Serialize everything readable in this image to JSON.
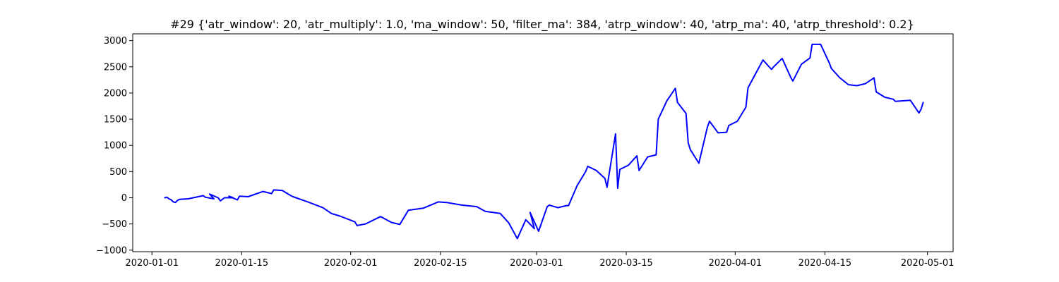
{
  "chart_data": {
    "type": "line",
    "title": "#29 {'atr_window': 20, 'atr_multiply': 1.0, 'ma_window': 50, 'filter_ma': 384, 'atrp_window': 40, 'atrp_ma': 40, 'atrp_threshold': 0.2}",
    "xlabel": "",
    "ylabel": "",
    "x_is_date": true,
    "xlim": [
      "2019-12-29",
      "2020-05-05"
    ],
    "ylim": [
      -1030,
      3130
    ],
    "x_ticks": [
      "2020-01-01",
      "2020-01-15",
      "2020-02-01",
      "2020-02-15",
      "2020-03-01",
      "2020-03-15",
      "2020-04-01",
      "2020-04-15",
      "2020-05-01"
    ],
    "y_ticks": [
      -1000,
      -500,
      0,
      500,
      1000,
      1500,
      2000,
      2500,
      3000
    ],
    "grid": false,
    "colors": {
      "line": "#0000ff",
      "axis": "#000000",
      "background": "#ffffff"
    },
    "series": [
      {
        "x": [
          "2020-01-03",
          "2020-01-03",
          "2020-01-03",
          "2020-01-04",
          "2020-01-04",
          "2020-01-04",
          "2020-01-05",
          "2020-01-05",
          "2020-01-06",
          "2020-01-09",
          "2020-01-09",
          "2020-01-10",
          "2020-01-10",
          "2020-01-11",
          "2020-01-11",
          "2020-01-12",
          "2020-01-12",
          "2020-01-13",
          "2020-01-13",
          "2020-01-14",
          "2020-01-14",
          "2020-01-16",
          "2020-01-18",
          "2020-01-19",
          "2020-01-20",
          "2020-01-21",
          "2020-01-22",
          "2020-01-23",
          "2020-01-25",
          "2020-01-27",
          "2020-01-29",
          "2020-01-30",
          "2020-02-01",
          "2020-02-02",
          "2020-02-03",
          "2020-02-05",
          "2020-02-06",
          "2020-02-07",
          "2020-02-08",
          "2020-02-10",
          "2020-02-12",
          "2020-02-14",
          "2020-02-16",
          "2020-02-18",
          "2020-02-20",
          "2020-02-22",
          "2020-02-24",
          "2020-02-25",
          "2020-02-27",
          "2020-02-28",
          "2020-02-29",
          "2020-02-29",
          "2020-03-01",
          "2020-03-02",
          "2020-03-03",
          "2020-03-04",
          "2020-03-05",
          "2020-03-06",
          "2020-03-07",
          "2020-03-08",
          "2020-03-09",
          "2020-03-10",
          "2020-03-11",
          "2020-03-12",
          "2020-03-13",
          "2020-03-13",
          "2020-03-14",
          "2020-03-15",
          "2020-03-16",
          "2020-03-17",
          "2020-03-18",
          "2020-03-19",
          "2020-03-20",
          "2020-03-21",
          "2020-03-22",
          "2020-03-23",
          "2020-03-24",
          "2020-03-24",
          "2020-03-25",
          "2020-03-26",
          "2020-03-27",
          "2020-03-28",
          "2020-03-29",
          "2020-03-30",
          "2020-03-31",
          "2020-04-01",
          "2020-04-02",
          "2020-04-03",
          "2020-04-05",
          "2020-04-06",
          "2020-04-07",
          "2020-04-08",
          "2020-04-09",
          "2020-04-10",
          "2020-04-11",
          "2020-04-12",
          "2020-04-13",
          "2020-04-14",
          "2020-04-15",
          "2020-04-16",
          "2020-04-17",
          "2020-04-18",
          "2020-04-20",
          "2020-04-21",
          "2020-04-22",
          "2020-04-23",
          "2020-04-24",
          "2020-04-25",
          "2020-04-26",
          "2020-04-28",
          "2020-04-29",
          "2020-04-30",
          "2020-04-30"
        ],
        "y": [
          0,
          10,
          -20,
          -40,
          -80,
          -90,
          -50,
          -30,
          -20,
          40,
          10,
          -20,
          70,
          0,
          -60,
          -30,
          0,
          0,
          30,
          -40,
          30,
          20,
          120,
          80,
          150,
          140,
          40,
          20,
          -80,
          -190,
          -300,
          -350,
          -460,
          -530,
          -500,
          -360,
          -380,
          -470,
          -510,
          -240,
          -200,
          -80,
          -90,
          -140,
          -170,
          -260,
          -300,
          -480,
          -780,
          -420,
          -590,
          -280,
          -640,
          -170,
          -140,
          -190,
          -150,
          -150,
          230,
          500,
          600,
          520,
          370,
          200,
          1220,
          180,
          540,
          620,
          800,
          520,
          780,
          820,
          1500,
          1850,
          2090,
          1820,
          1610,
          1050,
          920,
          660,
          1350,
          1460,
          1240,
          1250,
          1380,
          1460,
          1730,
          2100,
          2630,
          2450,
          2500,
          2660,
          2300,
          2230,
          2550,
          2670,
          2930,
          2930,
          2580,
          2470,
          2290,
          2160,
          2140,
          2180,
          2290,
          2020,
          1920,
          1880,
          1840,
          1860,
          1620,
          1690,
          1820
        ]
      }
    ]
  }
}
